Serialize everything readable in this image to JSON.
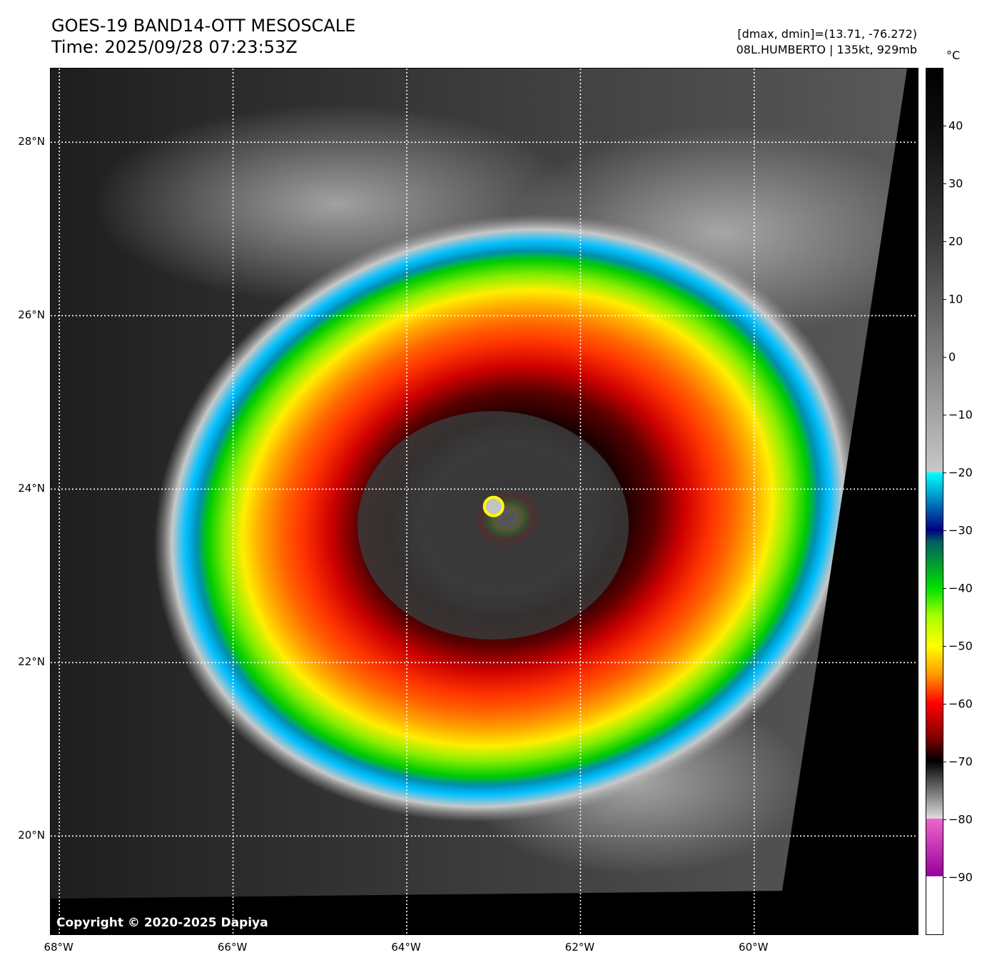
{
  "header": {
    "title": "GOES-19 BAND14-OTT MESOSCALE",
    "time": "Time: 2025/09/28 07:23:53Z",
    "range": "[dmax, dmin]=(13.71, -76.272)",
    "storm": "08L.HUMBERTO | 135kt, 929mb"
  },
  "map": {
    "copyright": "Copyright © 2020-2025 Dapiya",
    "lat_labels": [
      "28°N",
      "26°N",
      "24°N",
      "22°N",
      "20°N"
    ],
    "lon_labels": [
      "68°W",
      "66°W",
      "64°W",
      "62°W",
      "60°W"
    ],
    "lat_values": [
      28,
      26,
      24,
      22,
      20
    ],
    "lon_values": [
      -68,
      -66,
      -64,
      -62,
      -60
    ],
    "lat_range": [
      18.85,
      28.85
    ],
    "lon_range": [
      -68.1,
      -58.1
    ],
    "storm_center": {
      "lon": -63.0,
      "lat": 23.8
    }
  },
  "colorbar": {
    "unit": "°C",
    "ticks": [
      "40",
      "30",
      "20",
      "10",
      "0",
      "−10",
      "−20",
      "−30",
      "−40",
      "−50",
      "−60",
      "−70",
      "−80",
      "−90"
    ],
    "tick_values": [
      40,
      30,
      20,
      10,
      0,
      -10,
      -20,
      -30,
      -40,
      -50,
      -60,
      -70,
      -80,
      -90
    ],
    "range": [
      -100,
      50
    ]
  }
}
